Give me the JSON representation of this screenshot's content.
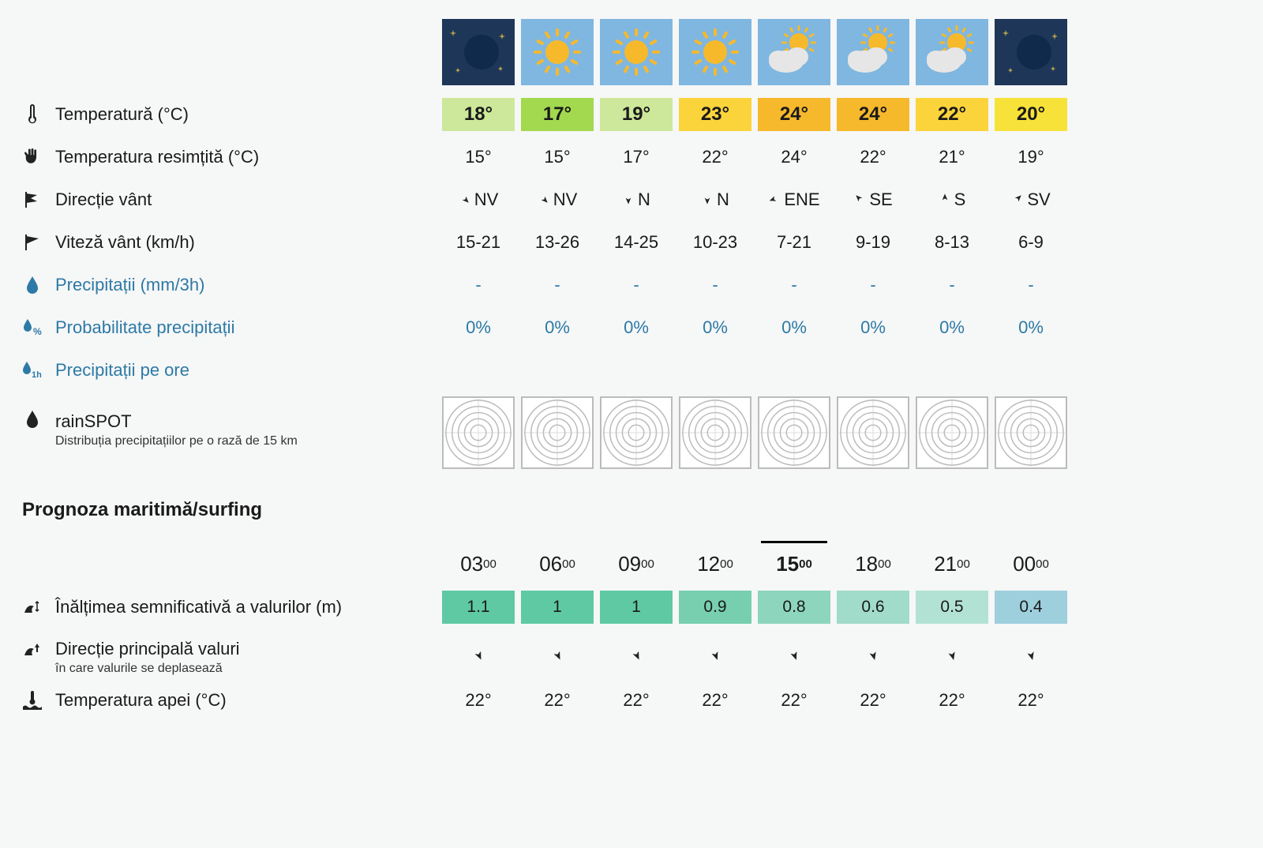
{
  "labels": {
    "temperature": "Temperatură (°C)",
    "feels_like": "Temperatura resimțită (°C)",
    "wind_dir": "Direcție vânt",
    "wind_speed": "Viteză vânt (km/h)",
    "precip": "Precipitații (mm/3h)",
    "precip_prob": "Probabilitate precipitații",
    "precip_hourly": "Precipitații pe ore",
    "rainspot": "rainSPOT",
    "rainspot_sub": "Distribuția precipitațiilor pe o rază de 15 km",
    "marine_header": "Prognoza maritimă/surfing",
    "wave_height": "Înălțimea semnificativă a valurilor (m)",
    "wave_dir": "Direcție principală valuri",
    "wave_dir_sub": "în care valurile se deplasează",
    "water_temp": "Temperatura apei (°C)"
  },
  "colors": {
    "sky_day": "#7fb7e0",
    "sky_night": "#1e3658",
    "temp_bg": [
      "#cde89a",
      "#a3d94f",
      "#cde89a",
      "#fbd43b",
      "#f6b92c",
      "#f6b92c",
      "#fbd43b",
      "#f7e23a"
    ],
    "wave_bg": [
      "#5fc9a3",
      "#5fc9a3",
      "#5fc9a3",
      "#77cfb0",
      "#8dd6bd",
      "#a0dcc9",
      "#b2e2d4",
      "#9ecfdd"
    ],
    "link": "#2d7aa6"
  },
  "hours": [
    {
      "icon": "moon",
      "temp": "18°",
      "feels": "15°",
      "wind_dir": "NV",
      "wind_arrow_deg": 135,
      "wind_speed": "15-21",
      "precip": "-",
      "prob": "0%",
      "time_h": "03",
      "time_m": "00",
      "wave_h": "1.1",
      "wave_arrow_deg": 155,
      "water": "22°",
      "current": false
    },
    {
      "icon": "sun",
      "temp": "17°",
      "feels": "15°",
      "wind_dir": "NV",
      "wind_arrow_deg": 135,
      "wind_speed": "13-26",
      "precip": "-",
      "prob": "0%",
      "time_h": "06",
      "time_m": "00",
      "wave_h": "1",
      "wave_arrow_deg": 155,
      "water": "22°",
      "current": false
    },
    {
      "icon": "sun",
      "temp": "19°",
      "feels": "17°",
      "wind_dir": "N",
      "wind_arrow_deg": 180,
      "wind_speed": "14-25",
      "precip": "-",
      "prob": "0%",
      "time_h": "09",
      "time_m": "00",
      "wave_h": "1",
      "wave_arrow_deg": 155,
      "water": "22°",
      "current": false
    },
    {
      "icon": "sun",
      "temp": "23°",
      "feels": "22°",
      "wind_dir": "N",
      "wind_arrow_deg": 180,
      "wind_speed": "10-23",
      "precip": "-",
      "prob": "0%",
      "time_h": "12",
      "time_m": "00",
      "wave_h": "0.9",
      "wave_arrow_deg": 160,
      "water": "22°",
      "current": false
    },
    {
      "icon": "partly",
      "temp": "24°",
      "feels": "24°",
      "wind_dir": "ENE",
      "wind_arrow_deg": 250,
      "wind_speed": "7-21",
      "precip": "-",
      "prob": "0%",
      "time_h": "15",
      "time_m": "00",
      "wave_h": "0.8",
      "wave_arrow_deg": 160,
      "water": "22°",
      "current": true
    },
    {
      "icon": "partly",
      "temp": "24°",
      "feels": "22°",
      "wind_dir": "SE",
      "wind_arrow_deg": 315,
      "wind_speed": "9-19",
      "precip": "-",
      "prob": "0%",
      "time_h": "18",
      "time_m": "00",
      "wave_h": "0.6",
      "wave_arrow_deg": 165,
      "water": "22°",
      "current": false
    },
    {
      "icon": "partly",
      "temp": "22°",
      "feels": "21°",
      "wind_dir": "S",
      "wind_arrow_deg": 0,
      "wind_speed": "8-13",
      "precip": "-",
      "prob": "0%",
      "time_h": "21",
      "time_m": "00",
      "wave_h": "0.5",
      "wave_arrow_deg": 165,
      "water": "22°",
      "current": false
    },
    {
      "icon": "moon",
      "temp": "20°",
      "feels": "19°",
      "wind_dir": "SV",
      "wind_arrow_deg": 45,
      "wind_speed": "6-9",
      "precip": "-",
      "prob": "0%",
      "time_h": "00",
      "time_m": "00",
      "wave_h": "0.4",
      "wave_arrow_deg": 165,
      "water": "22°",
      "current": false
    }
  ]
}
